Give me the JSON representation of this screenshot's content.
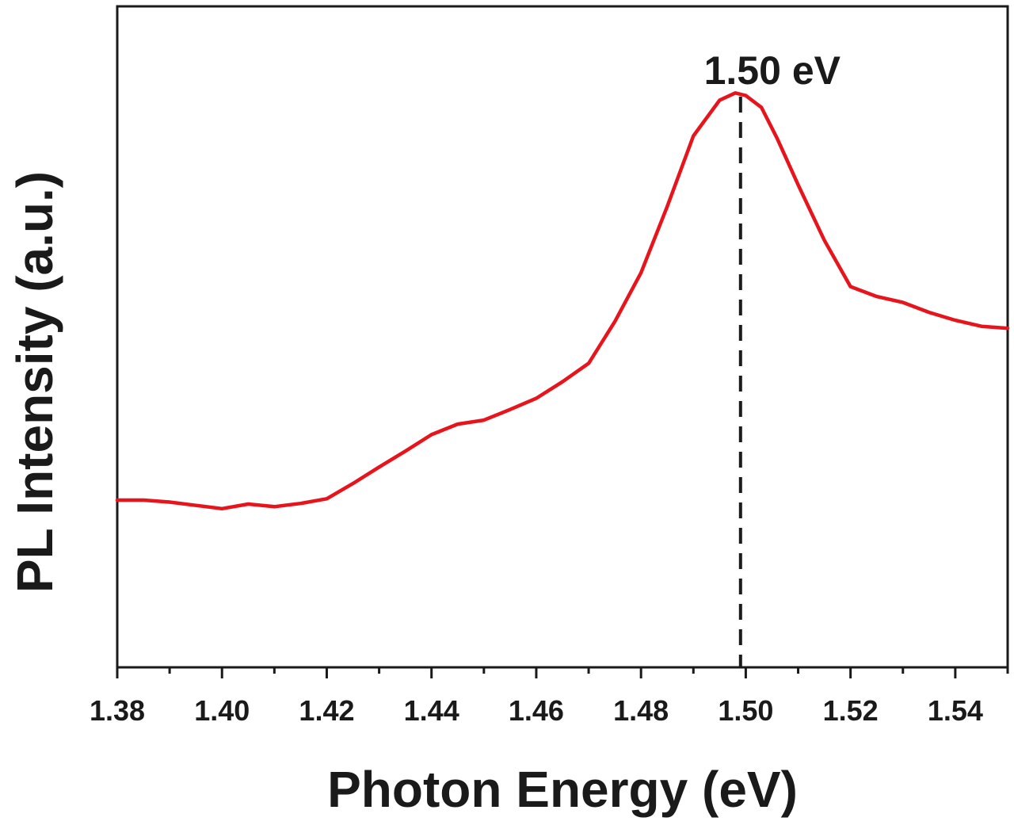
{
  "chart_data": {
    "type": "line",
    "xlabel": "Photon Energy (eV)",
    "ylabel": "PL Intensity (a.u.)",
    "xlim": [
      1.38,
      1.55
    ],
    "ylim": [
      0,
      1
    ],
    "x_ticks": [
      "1.38",
      "1.40",
      "1.42",
      "1.44",
      "1.46",
      "1.48",
      "1.50",
      "1.52",
      "1.54"
    ],
    "y_ticks_shown": false,
    "grid": false,
    "legend": "none",
    "line_color": "#e8141b",
    "series": [
      {
        "x": [
          1.38,
          1.385,
          1.39,
          1.395,
          1.4,
          1.405,
          1.41,
          1.415,
          1.42,
          1.425,
          1.43,
          1.435,
          1.44,
          1.445,
          1.45,
          1.455,
          1.46,
          1.465,
          1.47,
          1.475,
          1.48,
          1.485,
          1.49,
          1.495,
          1.498,
          1.5,
          1.503,
          1.506,
          1.51,
          1.515,
          1.52,
          1.525,
          1.53,
          1.535,
          1.54,
          1.545,
          1.55
        ],
        "y": [
          0.253,
          0.253,
          0.25,
          0.245,
          0.24,
          0.247,
          0.243,
          0.248,
          0.255,
          0.278,
          0.303,
          0.327,
          0.352,
          0.368,
          0.374,
          0.39,
          0.407,
          0.432,
          0.46,
          0.523,
          0.597,
          0.697,
          0.804,
          0.858,
          0.869,
          0.865,
          0.847,
          0.8,
          0.73,
          0.646,
          0.576,
          0.561,
          0.552,
          0.537,
          0.525,
          0.516,
          0.513
        ]
      }
    ],
    "annotations": [
      {
        "type": "vline",
        "x": 1.499,
        "style": "dashed",
        "label": "1.50 eV"
      }
    ]
  }
}
